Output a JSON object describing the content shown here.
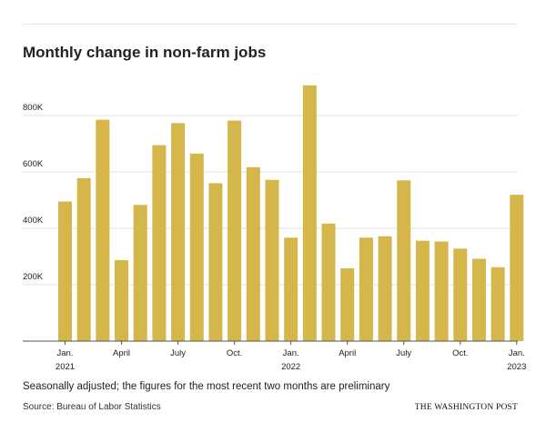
{
  "title": "Monthly change in non-farm jobs",
  "note": "Seasonally adjusted; the figures for the most recent two months are preliminary",
  "source": "Source: Bureau of Labor Statistics",
  "brand": "THE WASHINGTON POST",
  "colors": {
    "bar": "#d4b64b",
    "grid": "#e0e0e0",
    "axis": "#555555",
    "text": "#222222"
  },
  "chart_data": {
    "type": "bar",
    "title": "Monthly change in non-farm jobs",
    "xlabel": "",
    "ylabel": "",
    "ylim": [
      0,
      950000
    ],
    "grid": true,
    "categories": [
      "Jan. 2021",
      "Feb. 2021",
      "Mar. 2021",
      "Apr. 2021",
      "May 2021",
      "Jun. 2021",
      "Jul. 2021",
      "Aug. 2021",
      "Sep. 2021",
      "Oct. 2021",
      "Nov. 2021",
      "Dec. 2021",
      "Jan. 2022",
      "Feb. 2022",
      "Mar. 2022",
      "Apr. 2022",
      "May 2022",
      "Jun. 2022",
      "Jul. 2022",
      "Aug. 2022",
      "Sep. 2022",
      "Oct. 2022",
      "Nov. 2022",
      "Dec. 2022",
      "Jan. 2023"
    ],
    "values": [
      495000,
      578000,
      785000,
      287000,
      483000,
      695000,
      773000,
      665000,
      560000,
      782000,
      617000,
      572000,
      367000,
      907000,
      417000,
      258000,
      367000,
      372000,
      570000,
      356000,
      353000,
      328000,
      292000,
      262000,
      519000
    ],
    "y_ticks": [
      {
        "value": 200000,
        "label": "200K"
      },
      {
        "value": 400000,
        "label": "400K"
      },
      {
        "value": 600000,
        "label": "600K"
      },
      {
        "value": 800000,
        "label": "800K"
      }
    ],
    "x_ticks": [
      {
        "index": 0,
        "line1": "Jan.",
        "line2": "2021"
      },
      {
        "index": 3,
        "line1": "April",
        "line2": ""
      },
      {
        "index": 6,
        "line1": "July",
        "line2": ""
      },
      {
        "index": 9,
        "line1": "Oct.",
        "line2": ""
      },
      {
        "index": 12,
        "line1": "Jan.",
        "line2": "2022"
      },
      {
        "index": 15,
        "line1": "April",
        "line2": ""
      },
      {
        "index": 18,
        "line1": "July",
        "line2": ""
      },
      {
        "index": 21,
        "line1": "Oct.",
        "line2": ""
      },
      {
        "index": 24,
        "line1": "Jan.",
        "line2": "2023"
      }
    ]
  }
}
